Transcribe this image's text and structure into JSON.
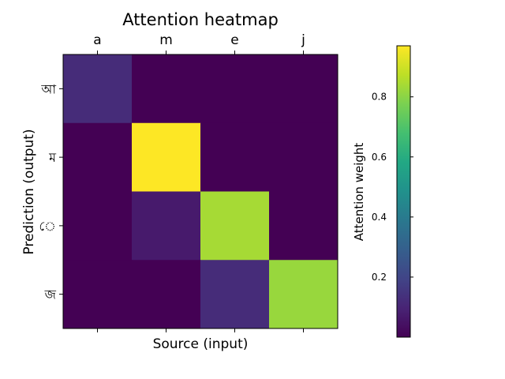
{
  "chart_data": {
    "type": "heatmap",
    "title": "Attention heatmap",
    "xlabel": "Source (input)",
    "ylabel": "Prediction (output)",
    "x_tick_labels": [
      "a",
      "m",
      "e",
      "j"
    ],
    "y_tick_labels": [
      "আ",
      "ম",
      "ে",
      "জ"
    ],
    "x_ticks_position": "top",
    "values": [
      [
        0.12,
        0.0,
        0.0,
        0.0
      ],
      [
        0.0,
        0.97,
        0.0,
        0.0
      ],
      [
        0.0,
        0.07,
        0.84,
        0.0
      ],
      [
        0.0,
        0.0,
        0.12,
        0.82
      ]
    ],
    "colormap": "viridis",
    "grid": false,
    "colorbar": {
      "label": "Attention weight",
      "range": [
        0.0,
        0.97
      ],
      "ticks": [
        0.2,
        0.4,
        0.6,
        0.8
      ],
      "tick_labels": [
        "0.2",
        "0.4",
        "0.6",
        "0.8"
      ],
      "placement": "right"
    }
  }
}
